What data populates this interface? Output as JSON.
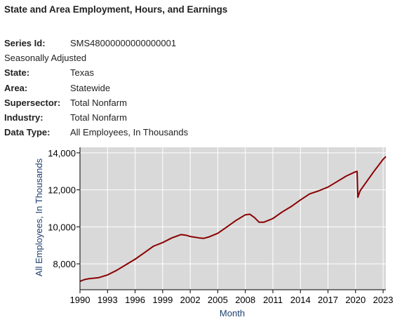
{
  "page_title": "State and Area Employment, Hours, and Earnings",
  "metadata": {
    "series_id": {
      "label": "Series Id:",
      "value": "SMS48000000000000001"
    },
    "seasonal_note": "Seasonally Adjusted",
    "state": {
      "label": "State:",
      "value": "Texas"
    },
    "area": {
      "label": "Area:",
      "value": "Statewide"
    },
    "supersector": {
      "label": "Supersector:",
      "value": "Total Nonfarm"
    },
    "industry": {
      "label": "Industry:",
      "value": "Total Nonfarm"
    },
    "data_type": {
      "label": "Data Type:",
      "value": "All Employees, In Thousands"
    }
  },
  "chart_data": {
    "type": "line",
    "xlabel": "Month",
    "ylabel": "All Employees, In Thousands",
    "x_ticks": [
      "1990",
      "1993",
      "1996",
      "1999",
      "2002",
      "2005",
      "2008",
      "2011",
      "2014",
      "2017",
      "2020",
      "2023"
    ],
    "y_ticks": [
      "8,000",
      "10,000",
      "12,000",
      "14,000"
    ],
    "x_range": [
      1990,
      2023.3
    ],
    "ylim": [
      6600,
      14300
    ],
    "grid": true,
    "colors": {
      "line": "#8b0000",
      "plot_bg": "#d9d9d9",
      "grid": "#ffffff",
      "axis_label": "#1f3f6e"
    },
    "series": [
      {
        "x": [
          1990.0,
          1990.5,
          1991.0,
          1992.0,
          1993.0,
          1994.0,
          1995.0,
          1996.0,
          1997.0,
          1998.0,
          1999.0,
          2000.0,
          2001.0,
          2001.5,
          2002.0,
          2003.0,
          2003.5,
          2004.0,
          2005.0,
          2006.0,
          2007.0,
          2008.0,
          2008.5,
          2009.0,
          2009.5,
          2010.0,
          2011.0,
          2012.0,
          2013.0,
          2014.0,
          2015.0,
          2016.0,
          2017.0,
          2018.0,
          2019.0,
          2020.0,
          2020.17,
          2020.25,
          2020.5,
          2021.0,
          2022.0,
          2023.0,
          2023.3
        ],
        "y": [
          7050,
          7150,
          7200,
          7250,
          7400,
          7650,
          7950,
          8250,
          8600,
          8950,
          9150,
          9400,
          9580,
          9550,
          9480,
          9400,
          9380,
          9450,
          9650,
          10000,
          10350,
          10650,
          10680,
          10500,
          10250,
          10250,
          10450,
          10800,
          11100,
          11450,
          11780,
          11950,
          12150,
          12450,
          12750,
          12980,
          13000,
          11600,
          11950,
          12300,
          13000,
          13650,
          13800
        ]
      }
    ]
  }
}
